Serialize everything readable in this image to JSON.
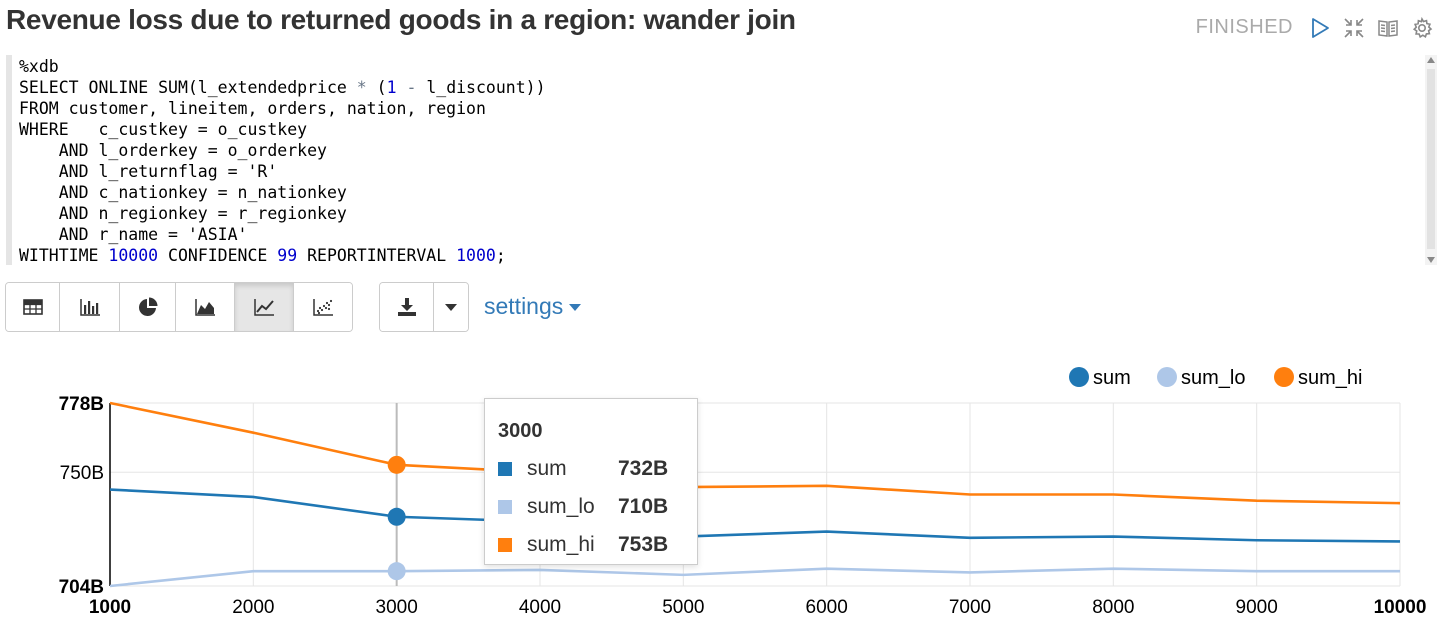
{
  "header": {
    "title": "Revenue loss due to returned goods in a region: wander join",
    "status": "FINISHED"
  },
  "editor": {
    "lines": [
      "%xdb",
      "SELECT ONLINE SUM(l_extendedprice * (1 - l_discount))",
      "FROM customer, lineitem, orders, nation, region",
      "WHERE   c_custkey = o_custkey",
      "    AND l_orderkey = o_orderkey",
      "    AND l_returnflag = 'R'",
      "    AND c_nationkey = n_nationkey",
      "    AND n_regionkey = r_regionkey",
      "    AND r_name = 'ASIA'",
      "WITHTIME 10000 CONFIDENCE 99 REPORTINTERVAL 1000;"
    ]
  },
  "toolbar": {
    "settings_label": "settings"
  },
  "colors": {
    "sum": "#1f77b4",
    "sum_lo": "#aec7e8",
    "sum_hi": "#ff7f0e",
    "grid": "#e5e5e5",
    "axis": "#000000"
  },
  "chart_data": {
    "type": "line",
    "x": [
      1000,
      2000,
      3000,
      4000,
      5000,
      6000,
      7000,
      8000,
      9000,
      10000
    ],
    "series": [
      {
        "name": "sum",
        "values": [
          743,
          740,
          732,
          730,
          724,
          726,
          723.5,
          724,
          722.5,
          722
        ]
      },
      {
        "name": "sum_lo",
        "values": [
          704,
          710,
          710,
          710.5,
          708.5,
          711,
          709.5,
          711,
          710,
          710
        ]
      },
      {
        "name": "sum_hi",
        "values": [
          778,
          766,
          753,
          750,
          744,
          744.5,
          741,
          741,
          738.5,
          737.5
        ]
      }
    ],
    "ylim": [
      704,
      778
    ],
    "y_ticks": [
      {
        "value": 778,
        "label": "778B"
      },
      {
        "value": 750,
        "label": "750B"
      },
      {
        "value": 704,
        "label": "704B"
      }
    ],
    "x_ticks": [
      "1000",
      "2000",
      "3000",
      "4000",
      "5000",
      "6000",
      "7000",
      "8000",
      "9000",
      "10000"
    ],
    "legend_position": "top-right",
    "grid": true,
    "tooltip": {
      "title": "3000",
      "rows": [
        {
          "name": "sum",
          "value": "732B"
        },
        {
          "name": "sum_lo",
          "value": "710B"
        },
        {
          "name": "sum_hi",
          "value": "753B"
        }
      ]
    }
  }
}
